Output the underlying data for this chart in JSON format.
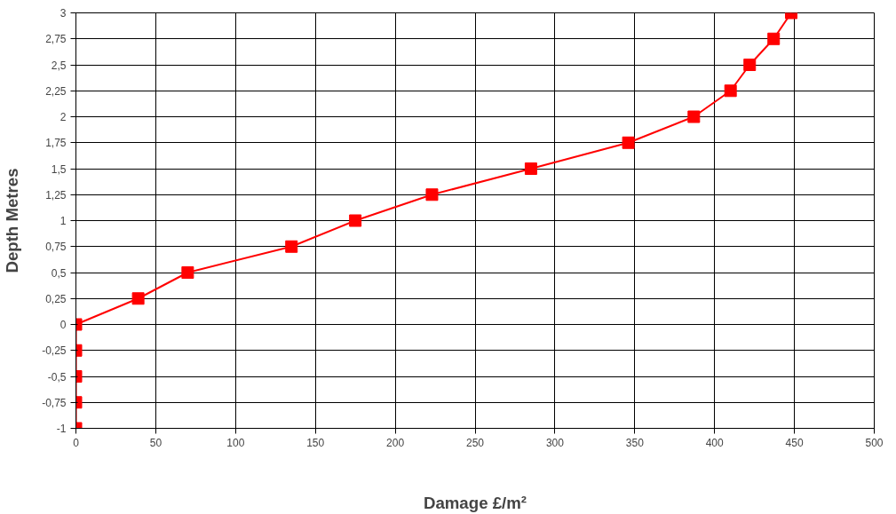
{
  "chart_data": {
    "type": "line",
    "xlabel": "Damage £/m²",
    "ylabel": "Depth Metres",
    "x": [
      0,
      0,
      0,
      0,
      0,
      39,
      70,
      135,
      175,
      223,
      285,
      346,
      387,
      410,
      422,
      437,
      448
    ],
    "series": [
      {
        "color": "#ff0000",
        "values": [
          -1,
          -0.75,
          -0.5,
          -0.25,
          0,
          0.25,
          0.5,
          0.75,
          1,
          1.25,
          1.5,
          1.75,
          2,
          2.25,
          2.5,
          2.75,
          3
        ]
      }
    ],
    "xlim": [
      0,
      500
    ],
    "xticks": [
      0,
      50,
      100,
      150,
      200,
      250,
      300,
      350,
      400,
      450,
      500
    ],
    "ylim": [
      -1,
      3
    ],
    "yticks": [
      {
        "value": -1,
        "label": "-1"
      },
      {
        "value": -0.75,
        "label": "-0,75"
      },
      {
        "value": -0.5,
        "label": "-0,5"
      },
      {
        "value": -0.25,
        "label": "-0,25"
      },
      {
        "value": 0,
        "label": "0"
      },
      {
        "value": 0.25,
        "label": "0,25"
      },
      {
        "value": 0.5,
        "label": "0,5"
      },
      {
        "value": 0.75,
        "label": "0,75"
      },
      {
        "value": 1,
        "label": "1"
      },
      {
        "value": 1.25,
        "label": "1,25"
      },
      {
        "value": 1.5,
        "label": "1,5"
      },
      {
        "value": 1.75,
        "label": "1,75"
      },
      {
        "value": 2,
        "label": "2"
      },
      {
        "value": 2.25,
        "label": "2,25"
      },
      {
        "value": 2.5,
        "label": "2,5"
      },
      {
        "value": 2.75,
        "label": "2,75"
      },
      {
        "value": 3,
        "label": "3"
      }
    ],
    "grid": true,
    "marker": "square",
    "line_style": "solid"
  }
}
